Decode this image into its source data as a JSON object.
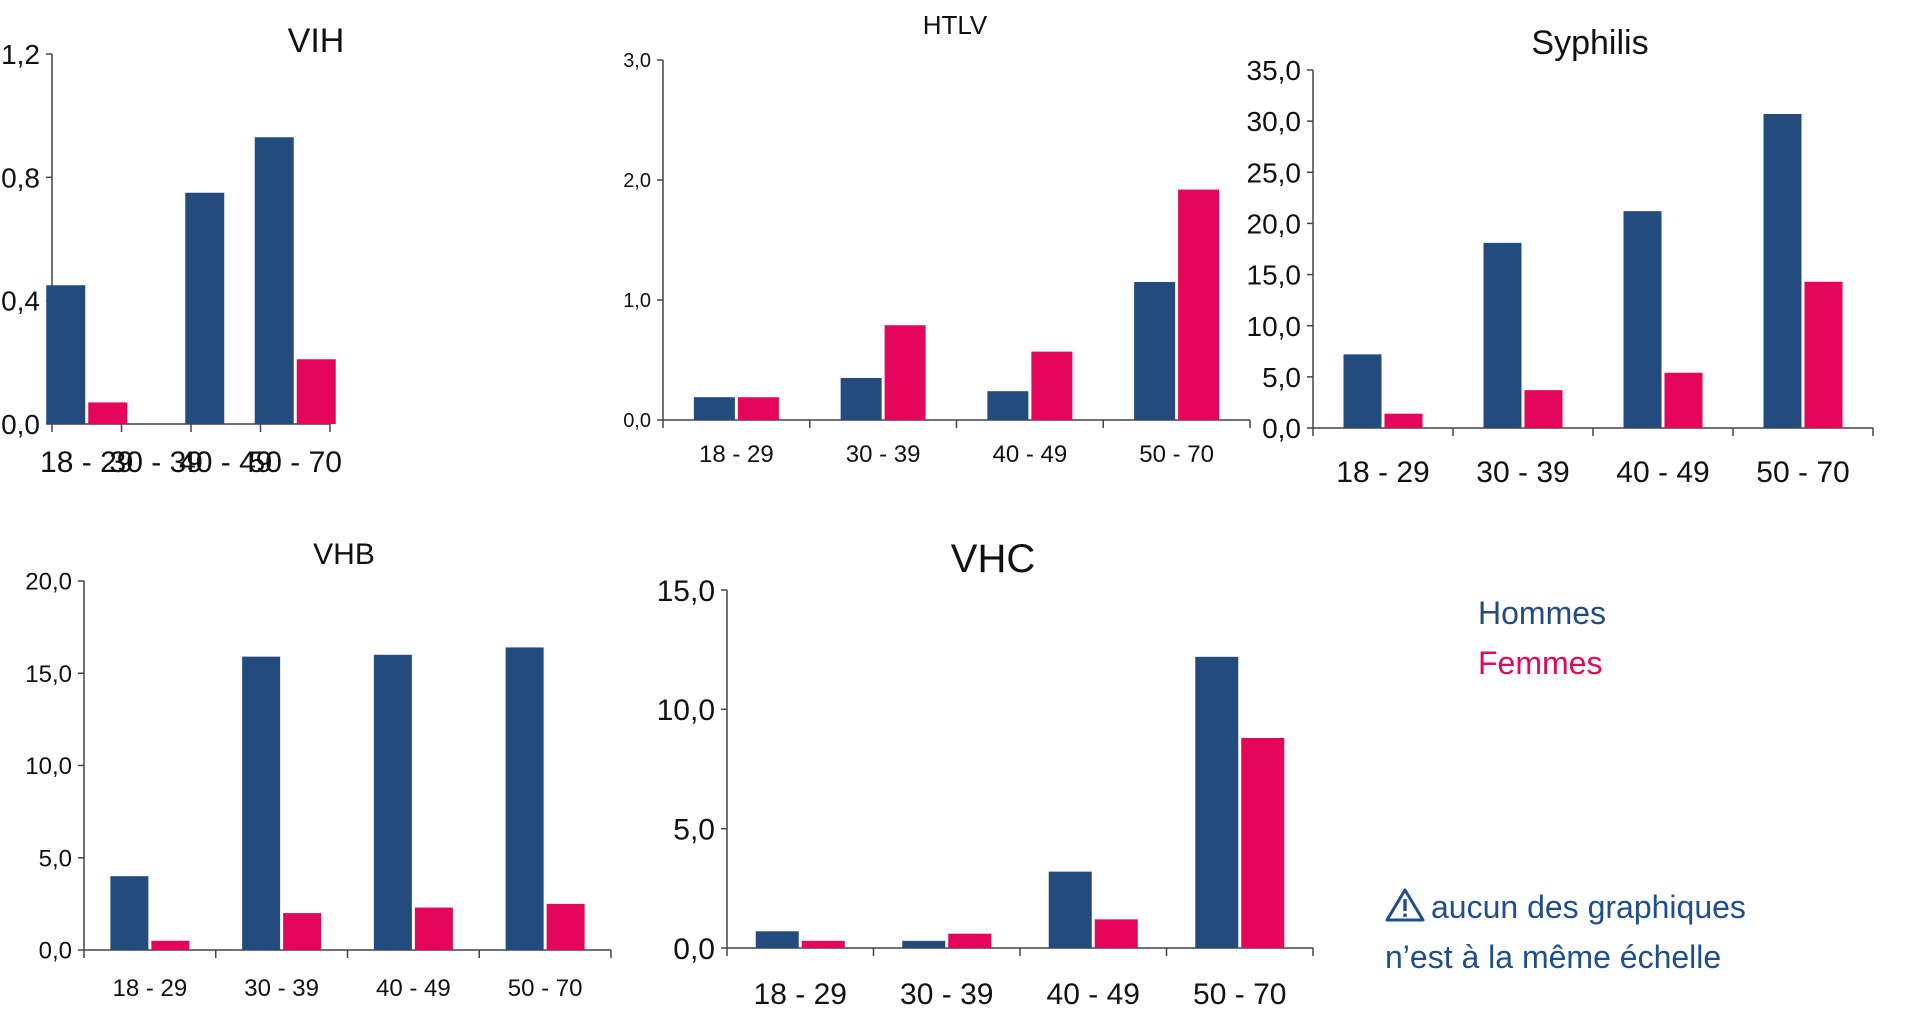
{
  "colors": {
    "hommes": "#234B7D",
    "femmes": "#E4065A",
    "text": "#111111",
    "axis": "#444444",
    "note": "#1F4E8C"
  },
  "legend": {
    "hommes": "Hommes",
    "femmes": "Femmes"
  },
  "note": {
    "line1": "aucun des graphiques",
    "line2": "n’est à la même échelle",
    "icon": "warning-triangle-icon"
  },
  "chart_data": [
    {
      "type": "bar",
      "title": "VIH",
      "categories": [
        "18 - 29",
        "30 - 39",
        "40 - 49",
        "50 - 70"
      ],
      "series": [
        {
          "name": "Hommes",
          "values": [
            0.45,
            0,
            0.75,
            0.93
          ]
        },
        {
          "name": "Femmes",
          "values": [
            0.07,
            0,
            0,
            0.21
          ]
        }
      ],
      "ylim": [
        0,
        1.2
      ],
      "yticks": [
        "0,0",
        "0,4",
        "0,8",
        "1,2"
      ],
      "grid": false
    },
    {
      "type": "bar",
      "title": "HTLV",
      "categories": [
        "18 - 29",
        "30 - 39",
        "40 - 49",
        "50 - 70"
      ],
      "series": [
        {
          "name": "Hommes",
          "values": [
            0.19,
            0.35,
            0.24,
            1.15
          ]
        },
        {
          "name": "Femmes",
          "values": [
            0.19,
            0.79,
            0.57,
            1.92
          ]
        }
      ],
      "ylim": [
        0,
        3.0
      ],
      "yticks": [
        "0,0",
        "1,0",
        "2,0",
        "3,0"
      ],
      "grid": false
    },
    {
      "type": "bar",
      "title": "Syphilis",
      "categories": [
        "18 - 29",
        "30 - 39",
        "40 - 49",
        "50 - 70"
      ],
      "series": [
        {
          "name": "Hommes",
          "values": [
            7.2,
            18.1,
            21.2,
            30.7
          ]
        },
        {
          "name": "Femmes",
          "values": [
            1.4,
            3.7,
            5.4,
            14.3
          ]
        }
      ],
      "ylim": [
        0,
        35.0
      ],
      "yticks": [
        "0,0",
        "5,0",
        "10,0",
        "15,0",
        "20,0",
        "25,0",
        "30,0",
        "35,0"
      ],
      "grid": false
    },
    {
      "type": "bar",
      "title": "VHB",
      "categories": [
        "18 - 29",
        "30 - 39",
        "40 - 49",
        "50 - 70"
      ],
      "series": [
        {
          "name": "Hommes",
          "values": [
            4.0,
            15.9,
            16.0,
            16.4
          ]
        },
        {
          "name": "Femmes",
          "values": [
            0.5,
            2.0,
            2.3,
            2.5
          ]
        }
      ],
      "ylim": [
        0,
        20.0
      ],
      "yticks": [
        "0,0",
        "5,0",
        "10,0",
        "15,0",
        "20,0"
      ],
      "grid": false
    },
    {
      "type": "bar",
      "title": "VHC",
      "categories": [
        "18 - 29",
        "30 - 39",
        "40 - 49",
        "50 - 70"
      ],
      "series": [
        {
          "name": "Hommes",
          "values": [
            0.7,
            0.3,
            3.2,
            12.2
          ]
        },
        {
          "name": "Femmes",
          "values": [
            0.3,
            0.6,
            1.2,
            8.8
          ]
        }
      ],
      "ylim": [
        0,
        15.0
      ],
      "yticks": [
        "0,0",
        "5,0",
        "10,0",
        "15,0"
      ],
      "grid": false
    }
  ]
}
